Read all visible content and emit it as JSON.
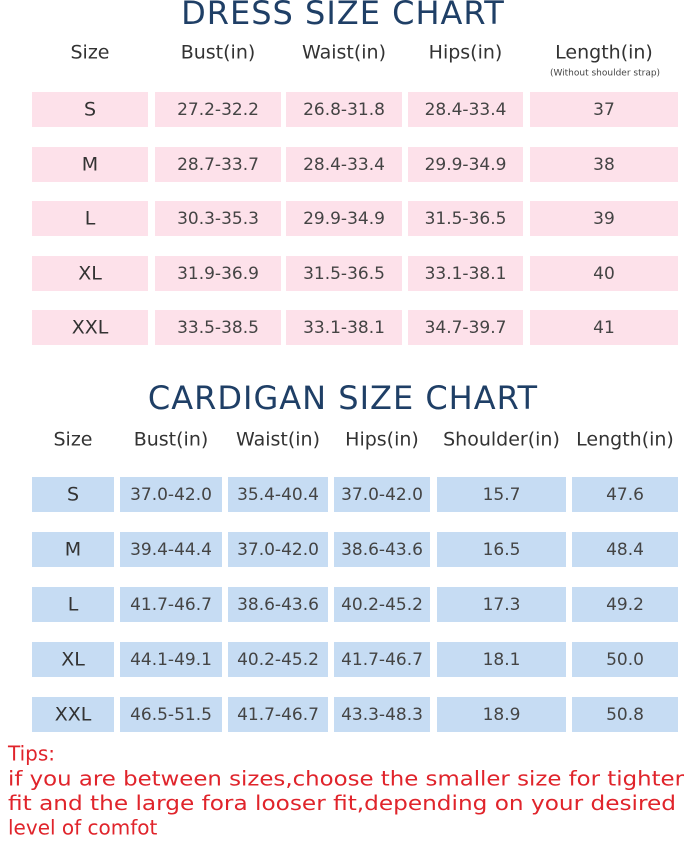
{
  "dress": {
    "title": "DRESS SIZE CHART",
    "header": [
      "Size",
      "Bust(in)",
      "Waist(in)",
      "Hips(in)",
      "Length(in)"
    ],
    "note": "(Without shoulder strap)",
    "rows": [
      [
        "S",
        "27.2-32.2",
        "26.8-31.8",
        "28.4-33.4",
        "37"
      ],
      [
        "M",
        "28.7-33.7",
        "28.4-33.4",
        "29.9-34.9",
        "38"
      ],
      [
        "L",
        "30.3-35.3",
        "29.9-34.9",
        "31.5-36.5",
        "39"
      ],
      [
        "XL",
        "31.9-36.9",
        "31.5-36.5",
        "33.1-38.1",
        "40"
      ],
      [
        "XXL",
        "33.5-38.5",
        "33.1-38.1",
        "34.7-39.7",
        "41"
      ]
    ]
  },
  "cardigan": {
    "title": "CARDIGAN SIZE CHART",
    "header": [
      "Size",
      "Bust(in)",
      "Waist(in)",
      "Hips(in)",
      "Shoulder(in)",
      "Length(in)"
    ],
    "rows": [
      [
        "S",
        "37.0-42.0",
        "35.4-40.4",
        "37.0-42.0",
        "15.7",
        "47.6"
      ],
      [
        "M",
        "39.4-44.4",
        "37.0-42.0",
        "38.6-43.6",
        "16.5",
        "48.4"
      ],
      [
        "L",
        "41.7-46.7",
        "38.6-43.6",
        "40.2-45.2",
        "17.3",
        "49.2"
      ],
      [
        "XL",
        "44.1-49.1",
        "40.2-45.2",
        "41.7-46.7",
        "18.1",
        "50.0"
      ],
      [
        "XXL",
        "46.5-51.5",
        "41.7-46.7",
        "43.3-48.3",
        "18.9",
        "50.8"
      ]
    ]
  },
  "tips": {
    "title": "Tips:",
    "lines": [
      "if you are between sizes,choose the smaller size for tighter",
      "fit and the large fora looser fit,depending on your desired",
      "level of comfot"
    ]
  }
}
